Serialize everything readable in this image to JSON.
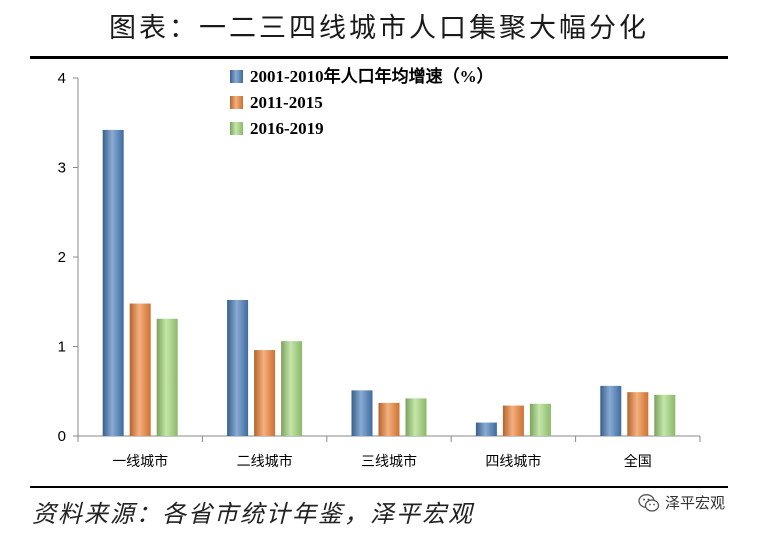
{
  "title": "图表：一二三四线城市人口集聚大幅分化",
  "source": "资料来源：各省市统计年鉴，泽平宏观",
  "watermark": {
    "icon": "wechat-icon",
    "text": "泽平宏观"
  },
  "chart_data": {
    "type": "bar",
    "title": "图表：一二三四线城市人口集聚大幅分化",
    "categories": [
      "一线城市",
      "二线城市",
      "三线城市",
      "四线城市",
      "全国"
    ],
    "series": [
      {
        "name": "2001-2010年人口年均增速（%）",
        "values": [
          3.42,
          1.52,
          0.51,
          0.15,
          0.56
        ],
        "color": "#4a7ebb"
      },
      {
        "name": "2011-2015",
        "values": [
          1.48,
          0.96,
          0.37,
          0.34,
          0.49
        ],
        "color": "#f0853a"
      },
      {
        "name": "2016-2019",
        "values": [
          1.31,
          1.06,
          0.42,
          0.36,
          0.46
        ],
        "color": "#a4d87c"
      }
    ],
    "ylim": [
      0,
      4
    ],
    "yticks": [
      0,
      1,
      2,
      3,
      4
    ],
    "xlabel": "",
    "ylabel": "",
    "grid": false,
    "legend_position": "top-center"
  }
}
